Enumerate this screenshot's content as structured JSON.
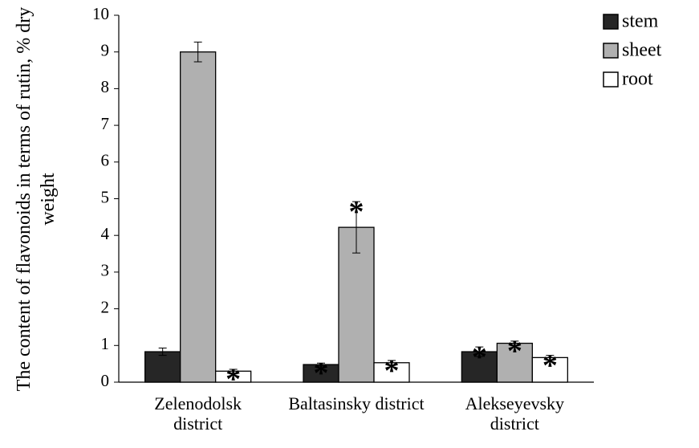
{
  "chart_data": {
    "type": "bar",
    "ylabel": "The content of flavonoids in terms of rutin, % dry weight",
    "categories": [
      "Zelenodolsk district",
      "Baltasinsky district",
      "Alekseyevsky district"
    ],
    "series": [
      {
        "name": "stem",
        "color": "#262626",
        "values": [
          0.83,
          0.48,
          0.83
        ],
        "errors": [
          0.1,
          0.04,
          0.13
        ],
        "annotations": [
          null,
          "*",
          "*"
        ]
      },
      {
        "name": "sheet",
        "color": "#b0b0b0",
        "values": [
          9.0,
          4.22,
          1.06
        ],
        "errors": [
          0.27,
          0.7,
          0.06
        ],
        "annotations": [
          null,
          "*",
          "*"
        ]
      },
      {
        "name": "root",
        "color": "#ffffff",
        "values": [
          0.3,
          0.53,
          0.67
        ],
        "errors": [
          0.05,
          0.06,
          0.06
        ],
        "annotations": [
          "*",
          "*",
          "*"
        ]
      }
    ],
    "ylim": [
      0,
      10
    ],
    "yticks": [
      0,
      1,
      2,
      3,
      4,
      5,
      6,
      7,
      8,
      9,
      10
    ],
    "legend": "top-right"
  }
}
